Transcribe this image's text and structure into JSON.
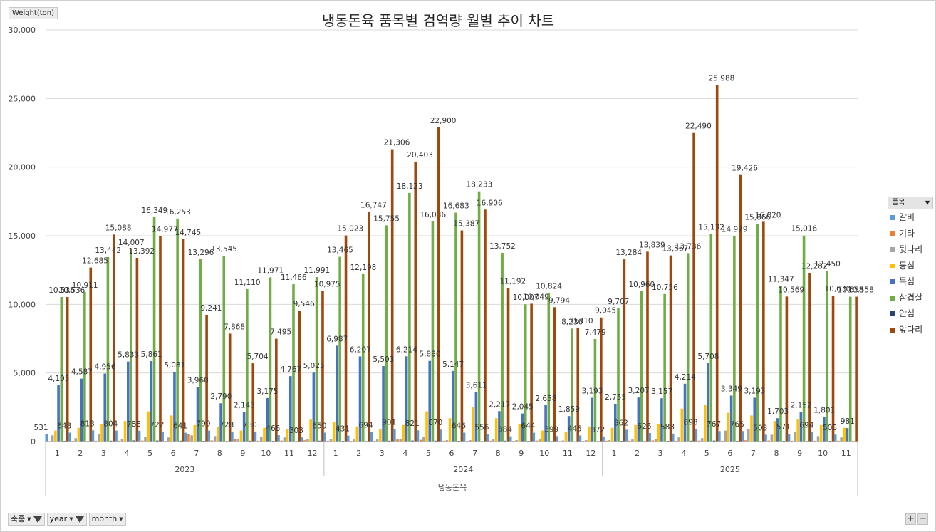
{
  "chart_data": {
    "type": "bar",
    "title": "냉동돈육  품목별 검역량 월별 추이 차트",
    "ylabel": "Weight(ton)",
    "xlabel": "냉동돈육",
    "ylim": [
      0,
      30000
    ],
    "yticks": [
      "0",
      "5,000",
      "10,000",
      "15,000",
      "20,000",
      "25,000",
      "30,000"
    ],
    "grid": true,
    "legend_title": "품목",
    "legend_position": "right",
    "years": [
      {
        "label": "2023",
        "months": [
          "1",
          "2",
          "3",
          "4",
          "5",
          "6",
          "7",
          "8",
          "9",
          "10",
          "11",
          "12"
        ]
      },
      {
        "label": "2024",
        "months": [
          "1",
          "2",
          "3",
          "4",
          "5",
          "6",
          "7",
          "8",
          "9",
          "10",
          "11",
          "12"
        ]
      },
      {
        "label": "2025",
        "months": [
          "1",
          "2",
          "3",
          "4",
          "5",
          "6",
          "7",
          "8",
          "9",
          "10",
          "11"
        ]
      }
    ],
    "series": [
      {
        "name": "갈비",
        "color": "#5b9bd5",
        "values": [
          531,
          648,
          813,
          804,
          788,
          722,
          641,
          799,
          728,
          730,
          466,
          303,
          650,
          431,
          694,
          901,
          821,
          870,
          646,
          556,
          384,
          644,
          399,
          445,
          372,
          862,
          626,
          583,
          898,
          767,
          765,
          503,
          571,
          694,
          508
        ]
      },
      {
        "name": "기타",
        "color": "#ed7d31",
        "values": [
          40,
          50,
          60,
          60,
          70,
          50,
          560,
          80,
          190,
          60,
          70,
          90,
          60,
          50,
          50,
          150,
          120,
          60,
          50,
          60,
          50,
          70,
          40,
          50,
          60,
          60,
          80,
          60,
          70,
          60,
          90,
          70,
          60,
          60,
          60
        ]
      },
      {
        "name": "뒷다리",
        "color": "#a5a5a5",
        "values": [
          450,
          250,
          550,
          200,
          350,
          300,
          450,
          400,
          200,
          350,
          300,
          200,
          200,
          150,
          150,
          200,
          350,
          100,
          100,
          150,
          100,
          150,
          80,
          100,
          100,
          150,
          200,
          300,
          250,
          800,
          900,
          500,
          700,
          400,
          300
        ]
      },
      {
        "name": "등심",
        "color": "#ffc000",
        "values": [
          800,
          1000,
          1300,
          1500,
          2200,
          1900,
          1200,
          1100,
          800,
          1000,
          900,
          1600,
          1400,
          1100,
          900,
          1200,
          2200,
          1700,
          2500,
          1700,
          1300,
          800,
          700,
          1100,
          1000,
          1200,
          1300,
          2400,
          2700,
          2100,
          1900,
          1500,
          1600,
          1200,
          1000
        ]
      },
      {
        "name": "목심",
        "color": "#4472c4",
        "values": [
          4105,
          4587,
          4956,
          5833,
          5861,
          5081,
          3960,
          2790,
          2143,
          3175,
          4767,
          5025,
          6987,
          6207,
          5503,
          6214,
          5880,
          5147,
          3611,
          2217,
          2045,
          2658,
          1859,
          3193,
          2755,
          3207,
          3157,
          4214,
          5708,
          3349,
          3193,
          1703,
          2152,
          1801,
          981
        ]
      },
      {
        "name": "삼겹살",
        "color": "#70ad47",
        "values": [
          10536,
          10911,
          13442,
          14007,
          16349,
          16253,
          13296,
          13545,
          11110,
          11971,
          11466,
          11991,
          13465,
          12198,
          15755,
          18123,
          16036,
          16683,
          18233,
          13752,
          10007,
          10824,
          8236,
          7479,
          9707,
          10960,
          10756,
          13736,
          15132,
          14979,
          15866,
          11347,
          15016,
          12450,
          10558
        ]
      },
      {
        "name": "안심",
        "color": "#264478",
        "values": [
          50,
          40,
          60,
          80,
          70,
          60,
          50,
          40,
          60,
          50,
          40,
          60,
          50,
          40,
          60,
          70,
          60,
          50,
          40,
          60,
          50,
          40,
          30,
          40,
          50,
          40,
          50,
          60,
          70,
          50,
          40,
          50,
          40,
          50,
          40
        ]
      },
      {
        "name": "앞다리",
        "color": "#9e480e",
        "values": [
          10536,
          12685,
          15088,
          13392,
          14977,
          14745,
          9241,
          7868,
          5704,
          7495,
          9546,
          10975,
          15023,
          16747,
          21306,
          20403,
          22900,
          15387,
          16906,
          11192,
          10049,
          9794,
          8310,
          9045,
          13284,
          13839,
          13567,
          22490,
          25988,
          19426,
          16020,
          10569,
          12282,
          10630,
          10558
        ]
      }
    ]
  },
  "filters": [
    {
      "label": "축종"
    },
    {
      "label": "year"
    },
    {
      "label": "month"
    }
  ],
  "zoom": {
    "expand": "+",
    "collapse": "−"
  }
}
